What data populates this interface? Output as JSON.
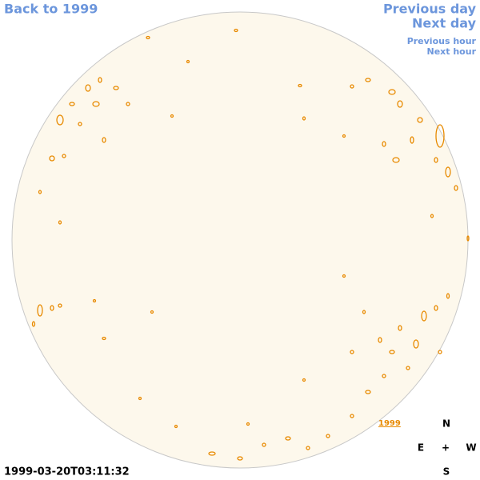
{
  "links": {
    "back": "Back to 1999",
    "previous_day": "Previous day",
    "next_day": "Next day",
    "previous_hour": "Previous hour",
    "next_hour": "Next hour"
  },
  "marker_label": "1999",
  "compass": {
    "n": "N",
    "e": "E",
    "center": "+",
    "w": "W",
    "s": "S"
  },
  "timestamp": "1999-03-20T03:11:32"
}
